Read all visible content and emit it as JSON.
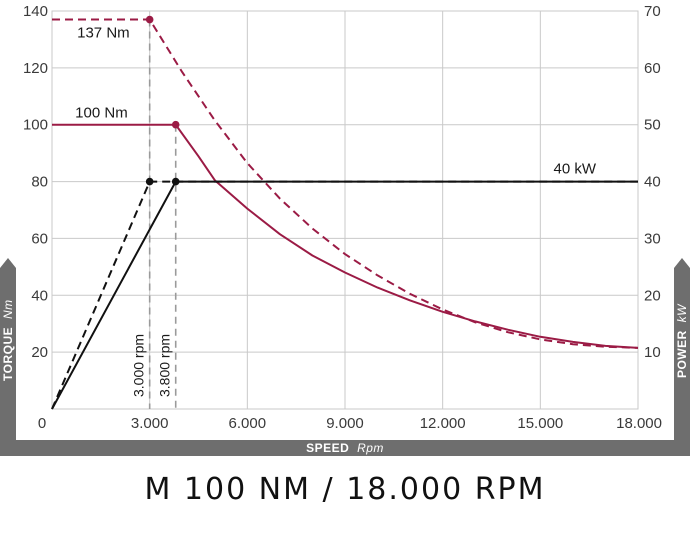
{
  "chart_data": {
    "type": "line",
    "x_axis": {
      "label": "SPEED",
      "unit": "Rpm",
      "ticks": [
        "0",
        "3.000",
        "6.000",
        "9.000",
        "12.000",
        "15.000",
        "18.000"
      ],
      "tick_values": [
        0,
        3000,
        6000,
        9000,
        12000,
        15000,
        18000
      ],
      "range": [
        0,
        18000
      ]
    },
    "y_axis_left": {
      "label": "TORQUE",
      "unit": "Nm",
      "ticks": [
        "20",
        "40",
        "60",
        "80",
        "100",
        "120",
        "140"
      ],
      "tick_values": [
        20,
        40,
        60,
        80,
        100,
        120,
        140
      ],
      "range": [
        0,
        140
      ]
    },
    "y_axis_right": {
      "label": "POWER",
      "unit": "kW",
      "ticks": [
        "10",
        "20",
        "30",
        "40",
        "50",
        "60",
        "70"
      ],
      "tick_values": [
        10,
        20,
        30,
        40,
        50,
        60,
        70
      ],
      "range": [
        0,
        70
      ]
    },
    "grid": true,
    "series": [
      {
        "kind": "torque",
        "axis": "left",
        "style": "solid",
        "color": "#9b1b45",
        "x": [
          0,
          3800,
          4500,
          5000,
          6000,
          7000,
          8000,
          9000,
          10000,
          11000,
          12000,
          13000,
          14000,
          15000,
          16000,
          17000,
          18000
        ],
        "y": [
          100,
          100,
          88.9,
          80.5,
          70.5,
          61.5,
          54,
          48,
          42.7,
          38.2,
          34.2,
          30.8,
          27.9,
          25.4,
          23.6,
          22.2,
          21.5
        ]
      },
      {
        "kind": "torque",
        "axis": "left",
        "style": "dashed",
        "color": "#9b1b45",
        "x": [
          0,
          3000,
          4000,
          5000,
          6000,
          7000,
          8000,
          9000,
          10000,
          11000,
          12000,
          13000,
          14000,
          15000,
          16000,
          17000,
          18000
        ],
        "y": [
          137,
          137,
          118.5,
          101.5,
          86.5,
          74,
          63.5,
          54.5,
          47,
          40.5,
          35,
          30.5,
          27,
          24.5,
          22.8,
          21.9,
          21.5
        ]
      },
      {
        "kind": "power",
        "axis": "right",
        "style": "solid",
        "color": "#111111",
        "x": [
          0,
          3800,
          18000
        ],
        "y": [
          0,
          40,
          40
        ]
      },
      {
        "kind": "power",
        "axis": "right",
        "style": "dashed",
        "color": "#111111",
        "x": [
          0,
          3000,
          18000
        ],
        "y": [
          0,
          40,
          40
        ]
      }
    ],
    "markers": [
      {
        "x": 3000,
        "y": 137,
        "axis": "left",
        "color": "#9b1b45"
      },
      {
        "x": 3800,
        "y": 100,
        "axis": "left",
        "color": "#9b1b45"
      },
      {
        "x": 3000,
        "y": 40,
        "axis": "right",
        "color": "#111111"
      },
      {
        "x": 3800,
        "y": 40,
        "axis": "right",
        "color": "#111111"
      }
    ],
    "guides": [
      {
        "x": 3000,
        "top_value": 137,
        "label": "3.000 rpm"
      },
      {
        "x": 3800,
        "top_value": 100,
        "label": "3.800 rpm"
      }
    ],
    "annotations": [
      {
        "text": "137 Nm",
        "anchor_x": 3000,
        "anchor_y": 137,
        "axis": "left"
      },
      {
        "text": "100 Nm",
        "anchor_x": 3800,
        "anchor_y": 100,
        "axis": "left"
      },
      {
        "text": "40 kW",
        "anchor_x": 18000,
        "anchor_y": 40,
        "axis": "right"
      }
    ]
  },
  "caption": "M 100 NM / 18.000 RPM"
}
